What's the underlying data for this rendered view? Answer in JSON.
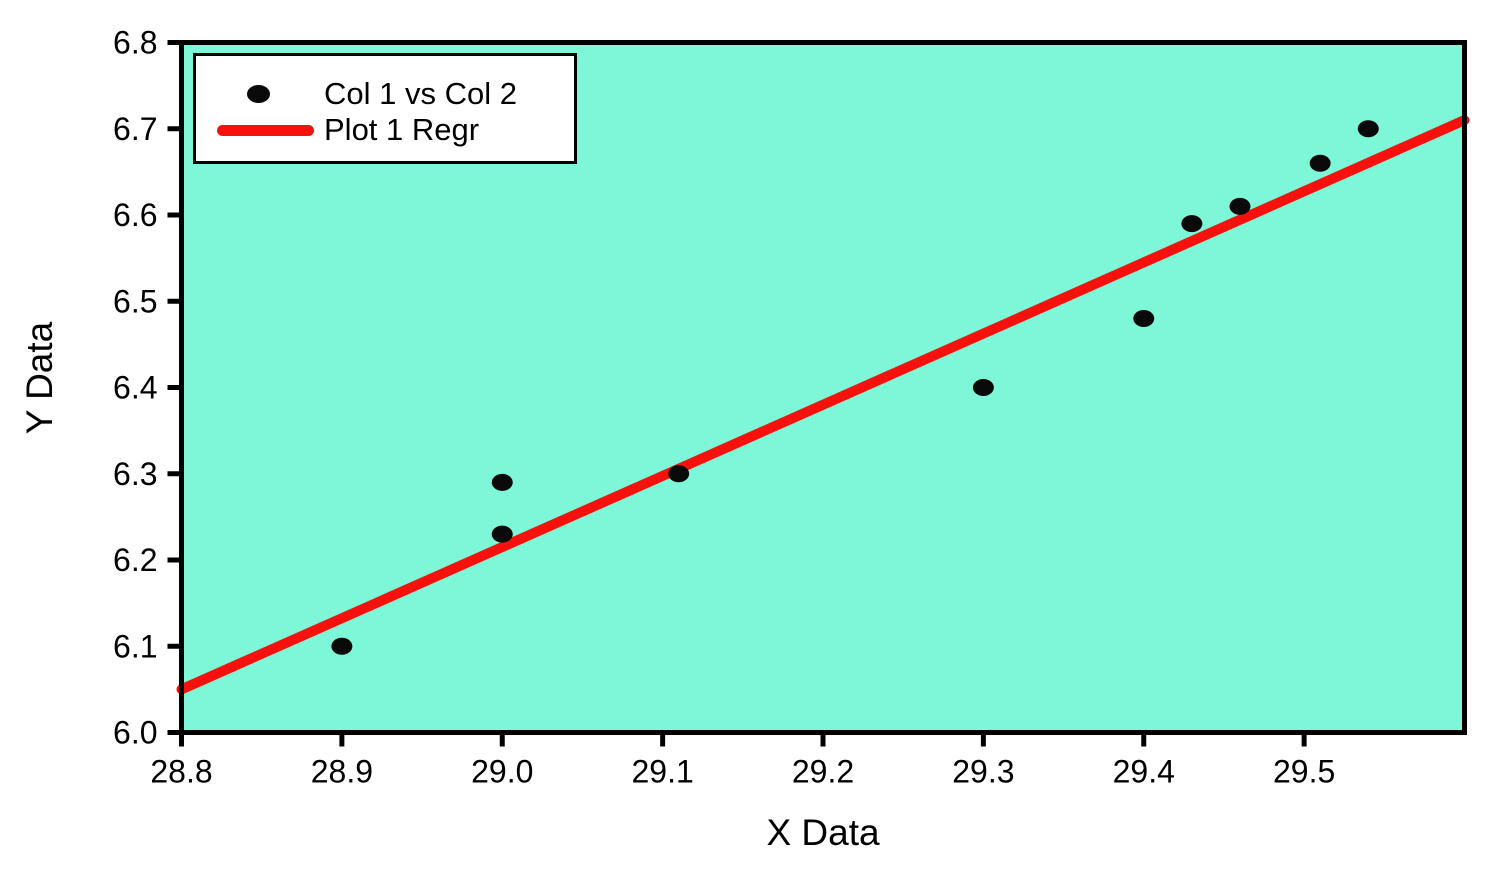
{
  "figure": {
    "background": "#FFFFFF",
    "axis_color": "#000000"
  },
  "legend": {
    "items": [
      {
        "label": "Col 1 vs Col 2",
        "marker": "dot",
        "color": "#0A0A0A"
      },
      {
        "label": "Plot 1 Regr",
        "marker": "line",
        "color": "#F8100C"
      }
    ]
  },
  "chart_data": {
    "type": "scatter",
    "title": "",
    "xlabel": "X Data",
    "ylabel": "Y Data",
    "xlim": [
      28.8,
      29.6
    ],
    "ylim": [
      6.0,
      6.8
    ],
    "grid": false,
    "legend_position": "top-left",
    "plot_background": "#7DF7D8",
    "x_ticks": [
      28.8,
      28.9,
      29.0,
      29.1,
      29.2,
      29.3,
      29.4,
      29.5
    ],
    "x_tick_labels": [
      "28.8",
      "28.9",
      "29.0",
      "29.1",
      "29.2",
      "29.3",
      "29.4",
      "29.5"
    ],
    "y_ticks": [
      6.0,
      6.1,
      6.2,
      6.3,
      6.4,
      6.5,
      6.6,
      6.7,
      6.8
    ],
    "y_tick_labels": [
      "6.0",
      "6.1",
      "6.2",
      "6.3",
      "6.4",
      "6.5",
      "6.6",
      "6.7",
      "6.8"
    ],
    "series": [
      {
        "name": "Col 1 vs Col 2",
        "type": "scatter",
        "color": "#0A0A0A",
        "points": [
          [
            28.9,
            6.1
          ],
          [
            29.0,
            6.23
          ],
          [
            29.0,
            6.29
          ],
          [
            29.11,
            6.3
          ],
          [
            29.3,
            6.4
          ],
          [
            29.4,
            6.48
          ],
          [
            29.43,
            6.59
          ],
          [
            29.46,
            6.61
          ],
          [
            29.51,
            6.66
          ],
          [
            29.54,
            6.7
          ]
        ]
      },
      {
        "name": "Plot 1 Regr",
        "type": "line",
        "color": "#F8100C",
        "points": [
          [
            28.8,
            6.05
          ],
          [
            29.6,
            6.71
          ]
        ]
      }
    ]
  }
}
